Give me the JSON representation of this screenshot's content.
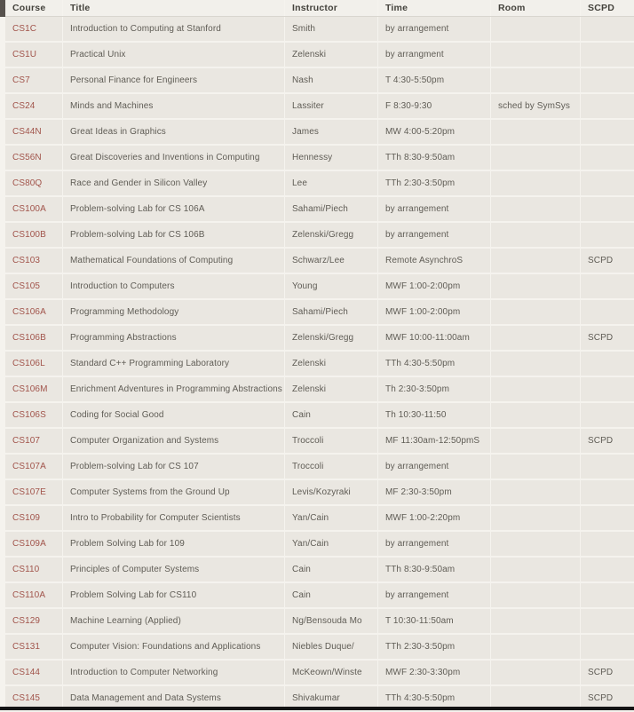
{
  "colors": {
    "course_link": "#a1544b",
    "header_text": "#44423c",
    "body_text": "#5f5c55",
    "row_bg": "#eae7e1",
    "gap": "#f5f3ee",
    "notch": "#57524d",
    "bottom_bar": "#141414"
  },
  "table": {
    "columns": [
      "Course",
      "Title",
      "Instructor",
      "Time",
      "Room",
      "SCPD"
    ],
    "rows": [
      {
        "course": "CS1C",
        "title": "Introduction to Computing at Stanford",
        "instructor": "Smith",
        "time": "by arrangement",
        "room": "",
        "scpd": ""
      },
      {
        "course": "CS1U",
        "title": "Practical Unix",
        "instructor": "Zelenski",
        "time": "by arrangment",
        "room": "",
        "scpd": ""
      },
      {
        "course": "CS7",
        "title": "Personal Finance for Engineers",
        "instructor": "Nash",
        "time": "T 4:30-5:50pm",
        "room": "",
        "scpd": ""
      },
      {
        "course": "CS24",
        "title": "Minds and Machines",
        "instructor": "Lassiter",
        "time": "F 8:30-9:30",
        "room": "sched by SymSys",
        "scpd": ""
      },
      {
        "course": "CS44N",
        "title": "Great Ideas in Graphics",
        "instructor": "James",
        "time": "MW 4:00-5:20pm",
        "room": "",
        "scpd": ""
      },
      {
        "course": "CS56N",
        "title": "Great Discoveries and Inventions in Computing",
        "instructor": "Hennessy",
        "time": "TTh 8:30-9:50am",
        "room": "",
        "scpd": ""
      },
      {
        "course": "CS80Q",
        "title": "Race and Gender in Silicon Valley",
        "instructor": "Lee",
        "time": "TTh 2:30-3:50pm",
        "room": "",
        "scpd": ""
      },
      {
        "course": "CS100A",
        "title": "Problem-solving Lab for CS 106A",
        "instructor": "Sahami/Piech",
        "time": "by arrangement",
        "room": "",
        "scpd": ""
      },
      {
        "course": "CS100B",
        "title": "Problem-solving Lab for CS 106B",
        "instructor": "Zelenski/Gregg",
        "time": "by arrangement",
        "room": "",
        "scpd": ""
      },
      {
        "course": "CS103",
        "title": "Mathematical Foundations of Computing",
        "instructor": "Schwarz/Lee",
        "time": "Remote AsynchroS",
        "room": "",
        "scpd": "SCPD"
      },
      {
        "course": "CS105",
        "title": "Introduction to Computers",
        "instructor": "Young",
        "time": "MWF 1:00-2:00pm",
        "room": "",
        "scpd": ""
      },
      {
        "course": "CS106A",
        "title": "Programming Methodology",
        "instructor": "Sahami/Piech",
        "time": "MWF 1:00-2:00pm",
        "room": "",
        "scpd": ""
      },
      {
        "course": "CS106B",
        "title": "Programming Abstractions",
        "instructor": "Zelenski/Gregg",
        "time": "MWF 10:00-11:00am",
        "room": "",
        "scpd": "SCPD"
      },
      {
        "course": "CS106L",
        "title": "Standard C++ Programming Laboratory",
        "instructor": "Zelenski",
        "time": "TTh 4:30-5:50pm",
        "room": "",
        "scpd": ""
      },
      {
        "course": "CS106M",
        "title": "Enrichment Adventures in Programming Abstractions",
        "instructor": "Zelenski",
        "time": "Th 2:30-3:50pm",
        "room": "",
        "scpd": ""
      },
      {
        "course": "CS106S",
        "title": "Coding for Social Good",
        "instructor": "Cain",
        "time": "Th 10:30-11:50",
        "room": "",
        "scpd": ""
      },
      {
        "course": "CS107",
        "title": "Computer Organization and Systems",
        "instructor": "Troccoli",
        "time": "MF 11:30am-12:50pmS",
        "room": "",
        "scpd": "SCPD"
      },
      {
        "course": "CS107A",
        "title": "Problem-solving Lab for CS 107",
        "instructor": "Troccoli",
        "time": "by arrangement",
        "room": "",
        "scpd": ""
      },
      {
        "course": "CS107E",
        "title": "Computer Systems from the Ground Up",
        "instructor": "Levis/Kozyraki",
        "time": "MF 2:30-3:50pm",
        "room": "",
        "scpd": ""
      },
      {
        "course": "CS109",
        "title": "Intro to Probability for Computer Scientists",
        "instructor": "Yan/Cain",
        "time": "MWF 1:00-2:20pm",
        "room": "",
        "scpd": ""
      },
      {
        "course": "CS109A",
        "title": "Problem Solving Lab for 109",
        "instructor": "Yan/Cain",
        "time": "by arrangement",
        "room": "",
        "scpd": ""
      },
      {
        "course": "CS110",
        "title": "Principles of Computer Systems",
        "instructor": "Cain",
        "time": "TTh 8:30-9:50am",
        "room": "",
        "scpd": ""
      },
      {
        "course": "CS110A",
        "title": "Problem Solving Lab for CS110",
        "instructor": "Cain",
        "time": "by arrangement",
        "room": "",
        "scpd": ""
      },
      {
        "course": "CS129",
        "title": "Machine Learning (Applied)",
        "instructor": "Ng/Bensouda Mo",
        "time": "T 10:30-11:50am",
        "room": "",
        "scpd": ""
      },
      {
        "course": "CS131",
        "title": "Computer Vision: Foundations and Applications",
        "instructor": "Niebles Duque/",
        "time": "TTh 2:30-3:50pm",
        "room": "",
        "scpd": ""
      },
      {
        "course": "CS144",
        "title": "Introduction to Computer Networking",
        "instructor": "McKeown/Winste",
        "time": "MWF 2:30-3:30pm",
        "room": "",
        "scpd": "SCPD"
      },
      {
        "course": "CS145",
        "title": "Data Management and Data Systems",
        "instructor": "Shivakumar",
        "time": "TTh 4:30-5:50pm",
        "room": "",
        "scpd": "SCPD"
      }
    ]
  }
}
